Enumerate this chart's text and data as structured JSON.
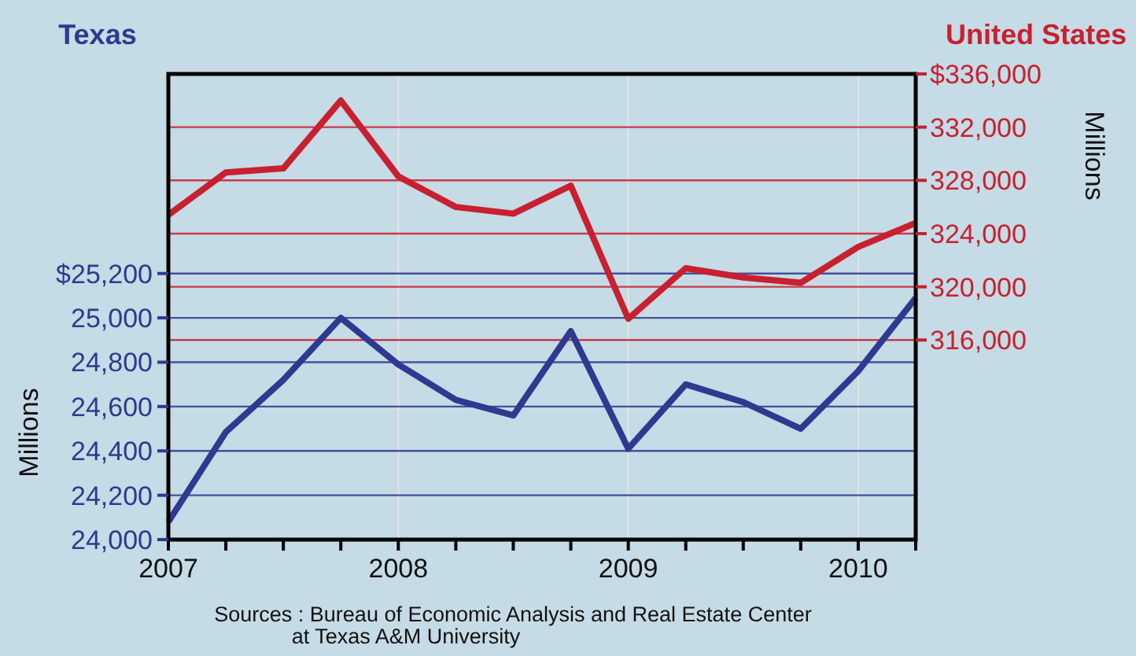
{
  "chart_data": {
    "type": "line",
    "ylabel": "Millions",
    "y2label": "Millions",
    "x": [
      2007,
      2007.25,
      2007.5,
      2007.75,
      2008,
      2008.25,
      2008.5,
      2008.75,
      2009,
      2009.25,
      2009.5,
      2009.75,
      2010,
      2010.25
    ],
    "series": [
      {
        "name": "Texas",
        "color": "#2e3a8f",
        "values": [
          24080,
          24485,
          24720,
          25000,
          24790,
          24630,
          24560,
          24940,
          24410,
          24700,
          24620,
          24500,
          24760,
          25090
        ]
      },
      {
        "name": "United States",
        "color": "#c8202f",
        "axis": "y2",
        "values": [
          325400,
          328600,
          328900,
          334000,
          328300,
          326000,
          325500,
          327600,
          317600,
          321400,
          320700,
          320300,
          323000,
          324800
        ]
      }
    ],
    "xlim": [
      2007,
      2010.25
    ],
    "xticks": [
      2007,
      {
        "value": 2007.25,
        "label": null
      },
      {
        "value": 2007.5,
        "label": null
      },
      {
        "value": 2007.75,
        "label": null
      },
      2008,
      {
        "value": 2008.25,
        "label": null
      },
      {
        "value": 2008.5,
        "label": null
      },
      {
        "value": 2008.75,
        "label": null
      },
      2009,
      {
        "value": 2009.25,
        "label": null
      },
      {
        "value": 2009.5,
        "label": null
      },
      {
        "value": 2009.75,
        "label": null
      },
      2010,
      {
        "value": 2010.25,
        "label": null
      }
    ],
    "ylim": [
      24000,
      26100
    ],
    "yticks": [
      {
        "value": 24000,
        "label": "24,000"
      },
      {
        "value": 24200,
        "label": "24,200"
      },
      {
        "value": 24400,
        "label": "24,400"
      },
      {
        "value": 24600,
        "label": "24,600"
      },
      {
        "value": 24800,
        "label": "24,800"
      },
      {
        "value": 25000,
        "label": "25,000"
      },
      {
        "value": 25200,
        "label": "$25,200"
      }
    ],
    "y2lim": [
      301000,
      336000
    ],
    "y2ticks": [
      {
        "value": 316000,
        "label": "316,000"
      },
      {
        "value": 320000,
        "label": "320,000"
      },
      {
        "value": 324000,
        "label": "324,000"
      },
      {
        "value": 328000,
        "label": "328,000"
      },
      {
        "value": 332000,
        "label": "332,000"
      },
      {
        "value": 336000,
        "label": "$336,000"
      }
    ],
    "grid": true,
    "legend": false,
    "marker": "none",
    "line_style": "solid",
    "annotations": [
      "Sources : Bureau of Economic Analysis and Real Estate Center at Texas A&M University"
    ]
  }
}
